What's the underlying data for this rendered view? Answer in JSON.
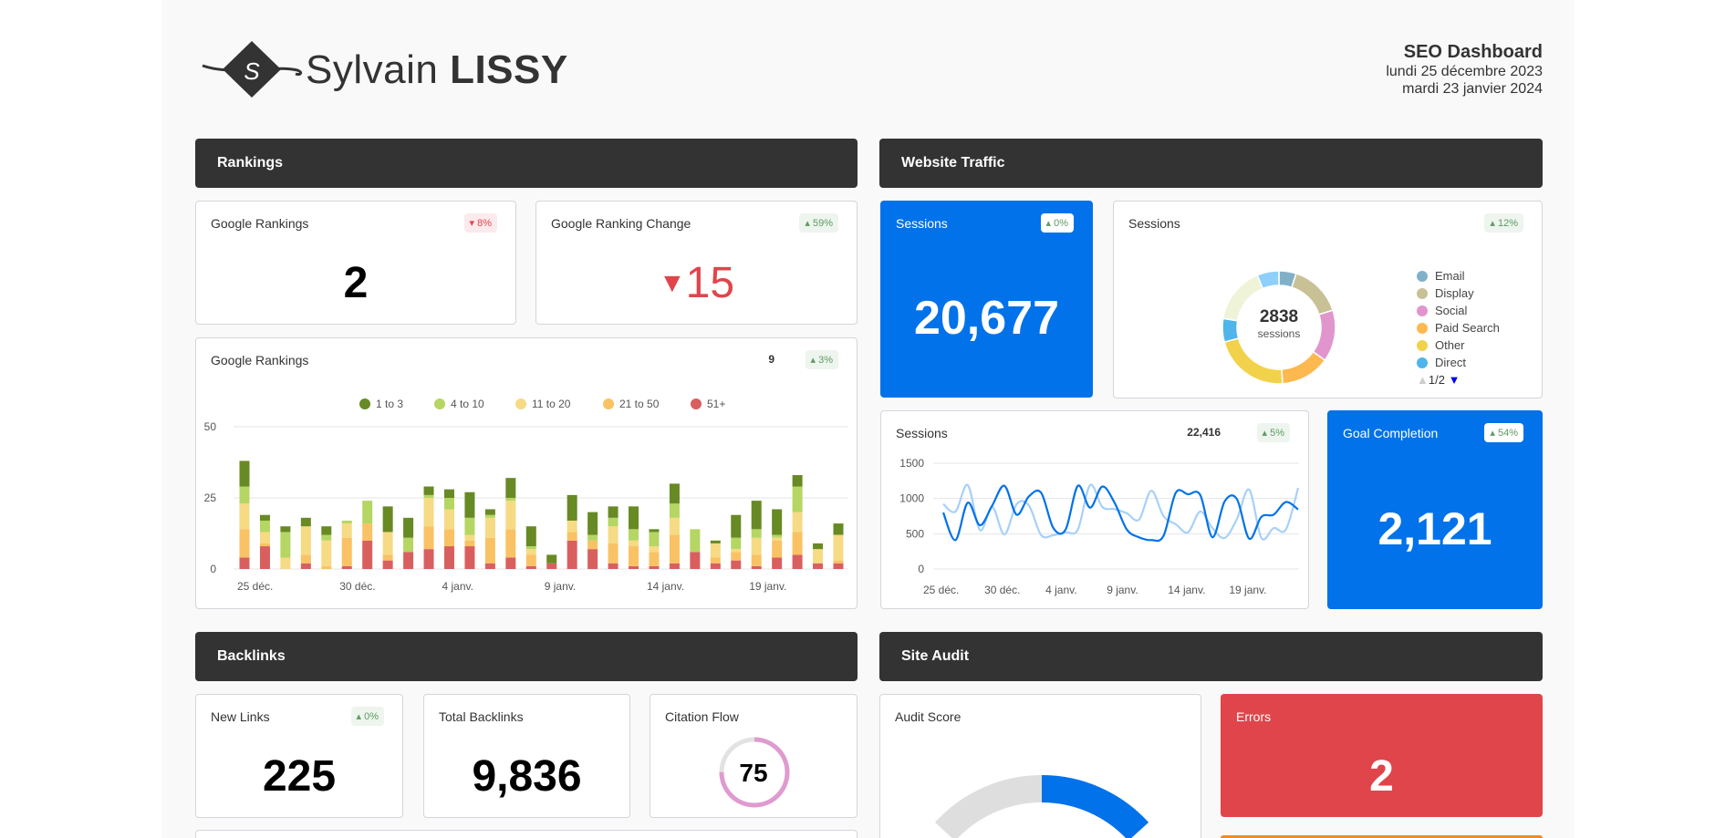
{
  "header": {
    "logo_first": "Sylvain",
    "logo_last": "LISSY",
    "logo_monogram": "S",
    "title": "SEO Dashboard",
    "date_start": "lundi 25 décembre 2023",
    "date_end": "mardi 23 janvier 2024"
  },
  "colors": {
    "section_bg": "#333333",
    "primary_blue": "#0172e9",
    "error_red": "#df454b",
    "positive": "#5f9a62",
    "negative": "#e0454b"
  },
  "rankings": {
    "section_title": "Rankings",
    "google_rankings": {
      "title": "Google Rankings",
      "value": "2",
      "badge": "8%",
      "badge_direction": "down"
    },
    "ranking_change": {
      "title": "Google Ranking Change",
      "value": "15",
      "direction": "down",
      "badge": "59%",
      "badge_direction": "up"
    },
    "chart_card": {
      "title": "Google Rankings",
      "total": "9",
      "badge": "3%",
      "badge_direction": "up"
    }
  },
  "traffic": {
    "section_title": "Website Traffic",
    "sessions_kpi": {
      "title": "Sessions",
      "value": "20,677",
      "badge": "0%",
      "badge_direction": "up"
    },
    "sessions_donut": {
      "title": "Sessions",
      "badge": "12%",
      "badge_direction": "up",
      "center_value": "2838",
      "center_label": "sessions",
      "pager": "1/2"
    },
    "sessions_line": {
      "title": "Sessions",
      "total": "22,416",
      "badge": "5%",
      "badge_direction": "up"
    },
    "goal_completion": {
      "title": "Goal Completion",
      "value": "2,121",
      "badge": "54%",
      "badge_direction": "up"
    }
  },
  "backlinks": {
    "section_title": "Backlinks",
    "new_links": {
      "title": "New Links",
      "value": "225",
      "badge": "0%",
      "badge_direction": "up"
    },
    "total_backlinks": {
      "title": "Total Backlinks",
      "value": "9,836"
    },
    "citation_flow": {
      "title": "Citation Flow",
      "value": "75",
      "fill_percent": 75,
      "color": "#e09ad0"
    }
  },
  "site_audit": {
    "section_title": "Site Audit",
    "audit_score": {
      "title": "Audit Score",
      "fill_fraction": 0.7
    },
    "errors": {
      "title": "Errors",
      "value": "2"
    }
  },
  "chart_data": [
    {
      "type": "bar",
      "stacked": true,
      "title": "Google Rankings",
      "ylim": [
        0,
        50
      ],
      "yticks": [
        0,
        25,
        50
      ],
      "grid": true,
      "legend_placement": "top",
      "categories": [
        "25 déc.",
        "26 déc.",
        "27 déc.",
        "28 déc.",
        "29 déc.",
        "30 déc.",
        "31 déc.",
        "1 janv.",
        "2 janv.",
        "3 janv.",
        "4 janv.",
        "5 janv.",
        "6 janv.",
        "7 janv.",
        "8 janv.",
        "9 janv.",
        "10 janv.",
        "11 janv.",
        "12 janv.",
        "13 janv.",
        "14 janv.",
        "15 janv.",
        "16 janv.",
        "17 janv.",
        "18 janv.",
        "19 janv.",
        "20 janv.",
        "21 janv.",
        "22 janv.",
        "23 janv."
      ],
      "xtick_labels": [
        "25 déc.",
        "30 déc.",
        "4 janv.",
        "9 janv.",
        "14 janv.",
        "19 janv."
      ],
      "series": [
        {
          "name": "51+",
          "color": "#d95f5f",
          "values": [
            4,
            8,
            0,
            2,
            0,
            1,
            10,
            3,
            6,
            7,
            8,
            8,
            2,
            4,
            1,
            2,
            10,
            7,
            2,
            1,
            1,
            2,
            6,
            2,
            3,
            1,
            4,
            5,
            2,
            2
          ]
        },
        {
          "name": "21 to 50",
          "color": "#f9c264",
          "values": [
            10,
            1,
            0,
            3,
            1,
            10,
            6,
            2,
            0,
            8,
            6,
            2,
            9,
            10,
            4,
            0,
            3,
            3,
            7,
            7,
            5,
            10,
            0,
            2,
            3,
            4,
            6,
            8,
            0,
            1
          ]
        },
        {
          "name": "11 to 20",
          "color": "#f6da84",
          "values": [
            9,
            4,
            4,
            10,
            9,
            5,
            0,
            8,
            0,
            10,
            7,
            2,
            7,
            10,
            2,
            0,
            4,
            0,
            6,
            2,
            2,
            6,
            0,
            5,
            1,
            6,
            1,
            7,
            5,
            9
          ]
        },
        {
          "name": "4 to 10",
          "color": "#b5d663",
          "values": [
            6,
            4,
            9,
            0,
            2,
            1,
            8,
            0,
            5,
            1,
            4,
            6,
            1,
            1,
            1,
            0,
            0,
            2,
            3,
            4,
            5,
            5,
            8,
            0,
            4,
            3,
            1,
            9,
            0,
            0
          ]
        },
        {
          "name": "1 to 3",
          "color": "#678a24",
          "values": [
            9,
            2,
            2,
            3,
            3,
            0,
            0,
            9,
            7,
            3,
            3,
            9,
            2,
            7,
            7,
            3,
            9,
            8,
            4,
            8,
            1,
            7,
            0,
            1,
            8,
            10,
            9,
            4,
            2,
            4
          ]
        }
      ],
      "legend_order": [
        "1 to 3",
        "4 to 10",
        "11 to 20",
        "21 to 50",
        "51+"
      ]
    },
    {
      "type": "pie",
      "donut": true,
      "title": "Sessions",
      "total": 2838,
      "slices": [
        {
          "name": "Email",
          "value": 140,
          "color": "#80b1c9"
        },
        {
          "name": "Display",
          "value": 430,
          "color": "#c9c196"
        },
        {
          "name": "Social",
          "value": 420,
          "color": "#e096cd"
        },
        {
          "name": "Paid Search",
          "value": 400,
          "color": "#fdb94f"
        },
        {
          "name": "Other",
          "value": 620,
          "color": "#f2d24a"
        },
        {
          "name": "Direct",
          "value": 190,
          "color": "#4fb5ea"
        },
        {
          "name": "",
          "value": 460,
          "color": "#eff4d8"
        },
        {
          "name": "",
          "value": 178,
          "color": "#8dd0fb"
        }
      ],
      "legend_placement": "right"
    },
    {
      "type": "line",
      "title": "Sessions",
      "ylim": [
        0,
        1500
      ],
      "yticks": [
        0,
        500,
        1000,
        1500
      ],
      "grid": true,
      "xtick_labels": [
        "25 déc.",
        "30 déc.",
        "4 janv.",
        "9 janv.",
        "14 janv.",
        "19 janv."
      ],
      "series": [
        {
          "color": "#0172e9",
          "values": [
            800,
            410,
            940,
            620,
            900,
            1180,
            770,
            1030,
            1080,
            580,
            560,
            1180,
            870,
            1170,
            940,
            560,
            450,
            410,
            470,
            1080,
            1060,
            1050,
            450,
            960,
            990,
            430,
            740,
            770,
            950,
            845
          ]
        },
        {
          "color": "#a8d0f8",
          "values": [
            920,
            815,
            1190,
            550,
            880,
            490,
            920,
            900,
            480,
            480,
            520,
            560,
            1190,
            880,
            850,
            790,
            700,
            1110,
            750,
            635,
            520,
            815,
            580,
            440,
            710,
            1125,
            440,
            580,
            560,
            1150
          ]
        }
      ]
    }
  ]
}
